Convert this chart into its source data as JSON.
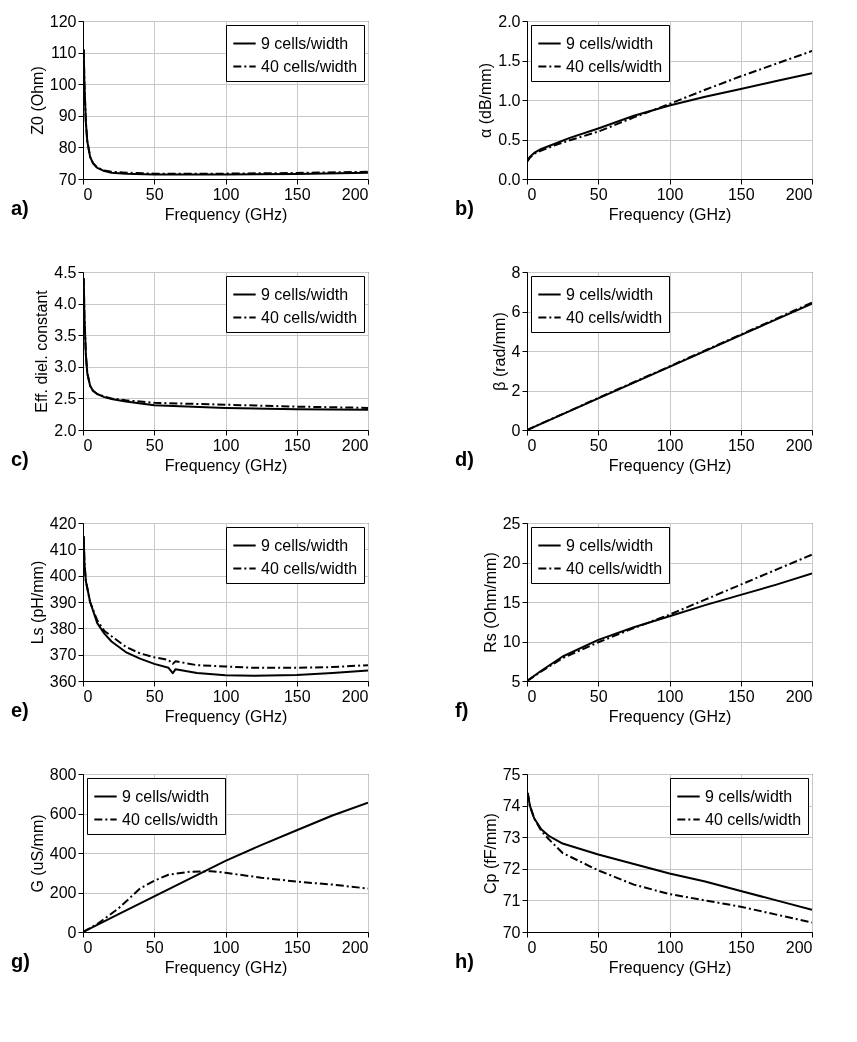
{
  "chart_data": [
    {
      "type": "line",
      "xlabel": "Frequency (GHz)",
      "ylabel": "Z0 (Ohm)",
      "xlim": [
        0,
        200
      ],
      "xticks": [
        0,
        50,
        100,
        150,
        200
      ],
      "ylim": [
        70,
        120
      ],
      "yticks": [
        70,
        80,
        90,
        100,
        110,
        120
      ],
      "grid": true,
      "legend": "top right",
      "annotations": [
        "a)"
      ],
      "series": [
        {
          "name": "9 cells/width",
          "color": "#000000",
          "line_style": "solid",
          "x": [
            0.5,
            1,
            2,
            3,
            5,
            7,
            10,
            15,
            20,
            30,
            50,
            100,
            150,
            200
          ],
          "values": [
            111,
            100,
            88,
            82,
            77,
            75,
            73.5,
            72.5,
            72,
            71.7,
            71.4,
            71.4,
            71.6,
            72
          ]
        },
        {
          "name": "40 cells/width",
          "color": "#000000",
          "line_style": "dashed",
          "x": [
            0.5,
            1,
            2,
            3,
            5,
            7,
            10,
            15,
            20,
            30,
            50,
            100,
            150,
            200
          ],
          "values": [
            111,
            100,
            88,
            82,
            77,
            75,
            73.6,
            72.7,
            72.3,
            72,
            71.7,
            71.7,
            71.9,
            72.3
          ]
        }
      ]
    },
    {
      "type": "line",
      "xlabel": "Frequency (GHz)",
      "ylabel": "α (dB/mm)",
      "xlim": [
        0,
        200
      ],
      "xticks": [
        0,
        50,
        100,
        150,
        200
      ],
      "ylim": [
        0,
        2
      ],
      "yticks": [
        {
          "value": 0,
          "label": "0.0"
        },
        0.5,
        {
          "value": 1,
          "label": "1.0"
        },
        1.5,
        {
          "value": 2,
          "label": "2.0"
        }
      ],
      "grid": true,
      "legend": "top left",
      "annotations": [
        "b)"
      ],
      "series": [
        {
          "name": "9 cells/width",
          "color": "#000000",
          "line_style": "solid",
          "x": [
            0,
            2,
            5,
            10,
            20,
            30,
            50,
            75,
            100,
            125,
            150,
            175,
            200
          ],
          "values": [
            0.22,
            0.28,
            0.33,
            0.38,
            0.45,
            0.52,
            0.64,
            0.8,
            0.93,
            1.04,
            1.14,
            1.24,
            1.34
          ]
        },
        {
          "name": "40 cells/width",
          "color": "#000000",
          "line_style": "dashed",
          "x": [
            0,
            2,
            5,
            10,
            20,
            30,
            50,
            75,
            100,
            125,
            150,
            175,
            200
          ],
          "values": [
            0.22,
            0.27,
            0.32,
            0.36,
            0.43,
            0.49,
            0.6,
            0.78,
            0.95,
            1.13,
            1.3,
            1.46,
            1.62
          ]
        }
      ]
    },
    {
      "type": "line",
      "xlabel": "Frequency (GHz)",
      "ylabel": "Eff. diel. constant",
      "xlim": [
        0,
        200
      ],
      "xticks": [
        0,
        50,
        100,
        150,
        200
      ],
      "ylim": [
        2,
        4.5
      ],
      "yticks": [
        {
          "value": 2,
          "label": "2.0"
        },
        2.5,
        {
          "value": 3,
          "label": "3.0"
        },
        3.5,
        {
          "value": 4,
          "label": "4.0"
        },
        4.5
      ],
      "grid": true,
      "legend": "top right",
      "annotations": [
        "c)"
      ],
      "series": [
        {
          "name": "9 cells/width",
          "color": "#000000",
          "line_style": "solid",
          "x": [
            0.5,
            1,
            2,
            3,
            5,
            7,
            10,
            15,
            20,
            30,
            50,
            100,
            150,
            200
          ],
          "values": [
            4.4,
            3.8,
            3.2,
            2.9,
            2.7,
            2.62,
            2.57,
            2.52,
            2.49,
            2.45,
            2.39,
            2.35,
            2.33,
            2.32
          ]
        },
        {
          "name": "40 cells/width",
          "color": "#000000",
          "line_style": "dashed",
          "x": [
            0.5,
            1,
            2,
            3,
            5,
            7,
            10,
            15,
            20,
            30,
            50,
            100,
            150,
            200
          ],
          "values": [
            4.4,
            3.8,
            3.2,
            2.9,
            2.7,
            2.62,
            2.57,
            2.53,
            2.5,
            2.47,
            2.43,
            2.4,
            2.37,
            2.35
          ]
        }
      ]
    },
    {
      "type": "line",
      "xlabel": "Frequency (GHz)",
      "ylabel": "β (rad/mm)",
      "xlim": [
        0,
        200
      ],
      "xticks": [
        0,
        50,
        100,
        150,
        200
      ],
      "ylim": [
        0,
        8
      ],
      "yticks": [
        0,
        2,
        4,
        6,
        8
      ],
      "grid": true,
      "legend": "top left",
      "annotations": [
        "d)"
      ],
      "series": [
        {
          "name": "9 cells/width",
          "color": "#000000",
          "line_style": "solid",
          "x": [
            0,
            50,
            100,
            150,
            200
          ],
          "values": [
            0,
            1.6,
            3.2,
            4.8,
            6.4
          ]
        },
        {
          "name": "40 cells/width",
          "color": "#000000",
          "line_style": "dashed",
          "x": [
            0,
            50,
            100,
            150,
            200
          ],
          "values": [
            0,
            1.62,
            3.22,
            4.83,
            6.45
          ]
        }
      ]
    },
    {
      "type": "line",
      "xlabel": "Frequency (GHz)",
      "ylabel": "Ls (pH/mm)",
      "xlim": [
        0,
        200
      ],
      "xticks": [
        0,
        50,
        100,
        150,
        200
      ],
      "ylim": [
        360,
        420
      ],
      "yticks": [
        360,
        370,
        380,
        390,
        400,
        410,
        420
      ],
      "grid": true,
      "legend": "top right",
      "annotations": [
        "e)"
      ],
      "series": [
        {
          "name": "9 cells/width",
          "color": "#000000",
          "line_style": "solid",
          "x": [
            0.5,
            1,
            2,
            5,
            10,
            15,
            20,
            30,
            40,
            50,
            60,
            63,
            65,
            80,
            100,
            120,
            150,
            175,
            200
          ],
          "values": [
            415,
            405,
            398,
            390,
            382,
            378,
            375,
            371,
            368.5,
            366.5,
            365,
            363,
            364.5,
            363,
            362.2,
            362,
            362.3,
            363,
            364
          ]
        },
        {
          "name": "40 cells/width",
          "color": "#000000",
          "line_style": "dashed",
          "x": [
            0.5,
            1,
            2,
            5,
            10,
            15,
            20,
            30,
            40,
            50,
            60,
            63,
            65,
            80,
            100,
            120,
            150,
            175,
            200
          ],
          "values": [
            415,
            405,
            398,
            390,
            383,
            379,
            377,
            373,
            370.5,
            369,
            368,
            366.5,
            367.5,
            366,
            365.5,
            365,
            365,
            365.3,
            366
          ]
        }
      ]
    },
    {
      "type": "line",
      "xlabel": "Frequency (GHz)",
      "ylabel": "Rs (Ohm/mm)",
      "xlim": [
        0,
        200
      ],
      "xticks": [
        0,
        50,
        100,
        150,
        200
      ],
      "ylim": [
        5,
        25
      ],
      "yticks": [
        5,
        10,
        15,
        20,
        25
      ],
      "grid": true,
      "legend": "top left",
      "annotations": [
        "f)"
      ],
      "series": [
        {
          "name": "9 cells/width",
          "color": "#000000",
          "line_style": "solid",
          "x": [
            0,
            10,
            25,
            50,
            75,
            100,
            125,
            150,
            175,
            200
          ],
          "values": [
            5,
            6.3,
            8.1,
            10.2,
            11.8,
            13.2,
            14.6,
            15.9,
            17.2,
            18.6
          ]
        },
        {
          "name": "40 cells/width",
          "color": "#000000",
          "line_style": "dashed",
          "x": [
            0,
            10,
            25,
            50,
            75,
            100,
            125,
            150,
            175,
            200
          ],
          "values": [
            5,
            6.2,
            7.9,
            9.9,
            11.7,
            13.4,
            15.3,
            17.2,
            19.1,
            21
          ]
        }
      ]
    },
    {
      "type": "line",
      "xlabel": "Frequency (GHz)",
      "ylabel": "G (uS/mm)",
      "xlim": [
        0,
        200
      ],
      "xticks": [
        0,
        50,
        100,
        150,
        200
      ],
      "ylim": [
        0,
        800
      ],
      "yticks": [
        0,
        200,
        400,
        600,
        800
      ],
      "grid": true,
      "legend": "top left",
      "annotations": [
        "g)"
      ],
      "series": [
        {
          "name": "9 cells/width",
          "color": "#000000",
          "line_style": "solid",
          "x": [
            0,
            25,
            50,
            75,
            100,
            125,
            150,
            175,
            200
          ],
          "values": [
            0,
            90,
            180,
            270,
            360,
            440,
            515,
            590,
            655
          ]
        },
        {
          "name": "40 cells/width",
          "color": "#000000",
          "line_style": "dashed",
          "x": [
            0,
            10,
            25,
            40,
            50,
            60,
            75,
            90,
            100,
            125,
            150,
            175,
            200
          ],
          "values": [
            0,
            40,
            120,
            220,
            260,
            290,
            305,
            308,
            300,
            275,
            255,
            240,
            220
          ]
        }
      ]
    },
    {
      "type": "line",
      "xlabel": "Frequency (GHz)",
      "ylabel": "Cp (fF/mm)",
      "xlim": [
        0,
        200
      ],
      "xticks": [
        0,
        50,
        100,
        150,
        200
      ],
      "ylim": [
        70,
        75
      ],
      "yticks": [
        70,
        71,
        72,
        73,
        74,
        75
      ],
      "grid": true,
      "legend": "top right",
      "annotations": [
        "h)"
      ],
      "series": [
        {
          "name": "9 cells/width",
          "color": "#000000",
          "line_style": "solid",
          "x": [
            0.5,
            2,
            5,
            10,
            15,
            25,
            50,
            75,
            100,
            125,
            150,
            175,
            200
          ],
          "values": [
            74.4,
            74.0,
            73.6,
            73.25,
            73.05,
            72.8,
            72.45,
            72.15,
            71.85,
            71.6,
            71.3,
            71.0,
            70.7
          ]
        },
        {
          "name": "40 cells/width",
          "color": "#000000",
          "line_style": "dashed",
          "x": [
            0.5,
            2,
            5,
            10,
            15,
            25,
            50,
            75,
            100,
            125,
            150,
            175,
            200
          ],
          "values": [
            74.4,
            74.0,
            73.6,
            73.2,
            72.95,
            72.5,
            71.95,
            71.5,
            71.2,
            71.0,
            70.8,
            70.55,
            70.3
          ]
        }
      ]
    }
  ]
}
